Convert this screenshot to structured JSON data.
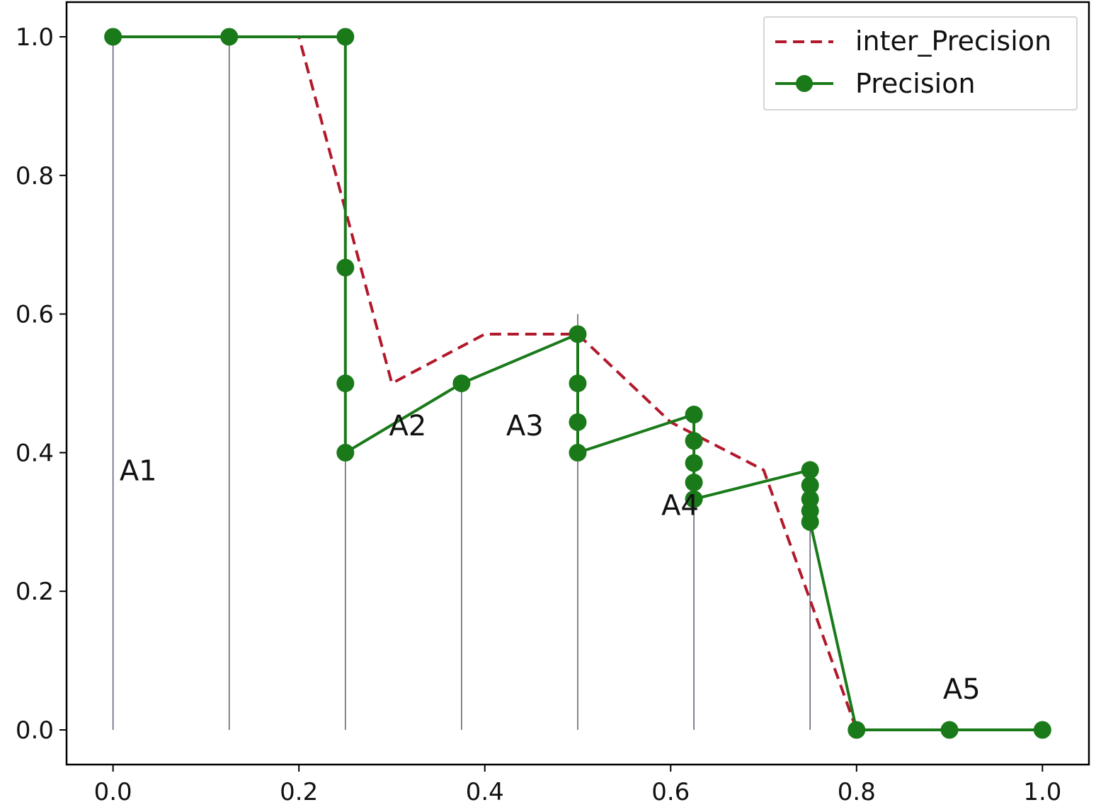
{
  "chart_data": {
    "type": "line",
    "title": "",
    "xlabel": "",
    "ylabel": "",
    "xlim": [
      -0.05,
      1.05
    ],
    "ylim": [
      -0.05,
      1.05
    ],
    "xticks": [
      0.0,
      0.2,
      0.4,
      0.6,
      0.8,
      1.0
    ],
    "xtick_labels": [
      "0.0",
      "0.2",
      "0.4",
      "0.6",
      "0.8",
      "1.0"
    ],
    "yticks": [
      0.0,
      0.2,
      0.4,
      0.6,
      0.8,
      1.0
    ],
    "ytick_labels": [
      "0.0",
      "0.2",
      "0.4",
      "0.6",
      "0.8",
      "1.0"
    ],
    "grid": false,
    "legend_position": "top-right",
    "series": [
      {
        "name": "inter_Precision",
        "style": "dashed",
        "color": "#b2182b",
        "x": [
          0.0,
          0.1,
          0.2,
          0.3,
          0.4,
          0.5,
          0.6,
          0.7,
          0.8,
          0.9,
          1.0
        ],
        "y": [
          1.0,
          1.0,
          1.0,
          0.5,
          0.571,
          0.571,
          0.444,
          0.375,
          0.0,
          0.0,
          0.0
        ]
      },
      {
        "name": "Precision",
        "style": "solid-marker",
        "color": "#1a7a1a",
        "x": [
          0.0,
          0.125,
          0.25,
          0.25,
          0.25,
          0.25,
          0.375,
          0.5,
          0.5,
          0.5,
          0.5,
          0.625,
          0.625,
          0.625,
          0.625,
          0.625,
          0.75,
          0.75,
          0.75,
          0.75,
          0.75,
          0.8,
          0.9,
          1.0
        ],
        "y": [
          1.0,
          1.0,
          1.0,
          0.667,
          0.5,
          0.4,
          0.5,
          0.571,
          0.5,
          0.444,
          0.4,
          0.455,
          0.417,
          0.385,
          0.357,
          0.333,
          0.375,
          0.353,
          0.333,
          0.316,
          0.3,
          0.0,
          0.0,
          0.0
        ]
      }
    ],
    "vlines": [
      {
        "x": 0.0,
        "ymax": 1.0
      },
      {
        "x": 0.125,
        "ymax": 1.0
      },
      {
        "x": 0.25,
        "ymax": 1.0
      },
      {
        "x": 0.375,
        "ymax": 0.5
      },
      {
        "x": 0.5,
        "ymax": 0.6
      },
      {
        "x": 0.625,
        "ymax": 0.333
      },
      {
        "x": 0.75,
        "ymax": 0.3
      }
    ],
    "annotations": [
      {
        "text": "A1",
        "x": 0.007,
        "y": 0.36
      },
      {
        "text": "A2",
        "x": 0.297,
        "y": 0.425
      },
      {
        "text": "A3",
        "x": 0.423,
        "y": 0.425
      },
      {
        "text": "A4",
        "x": 0.59,
        "y": 0.31
      },
      {
        "text": "A5",
        "x": 0.893,
        "y": 0.045
      }
    ]
  }
}
